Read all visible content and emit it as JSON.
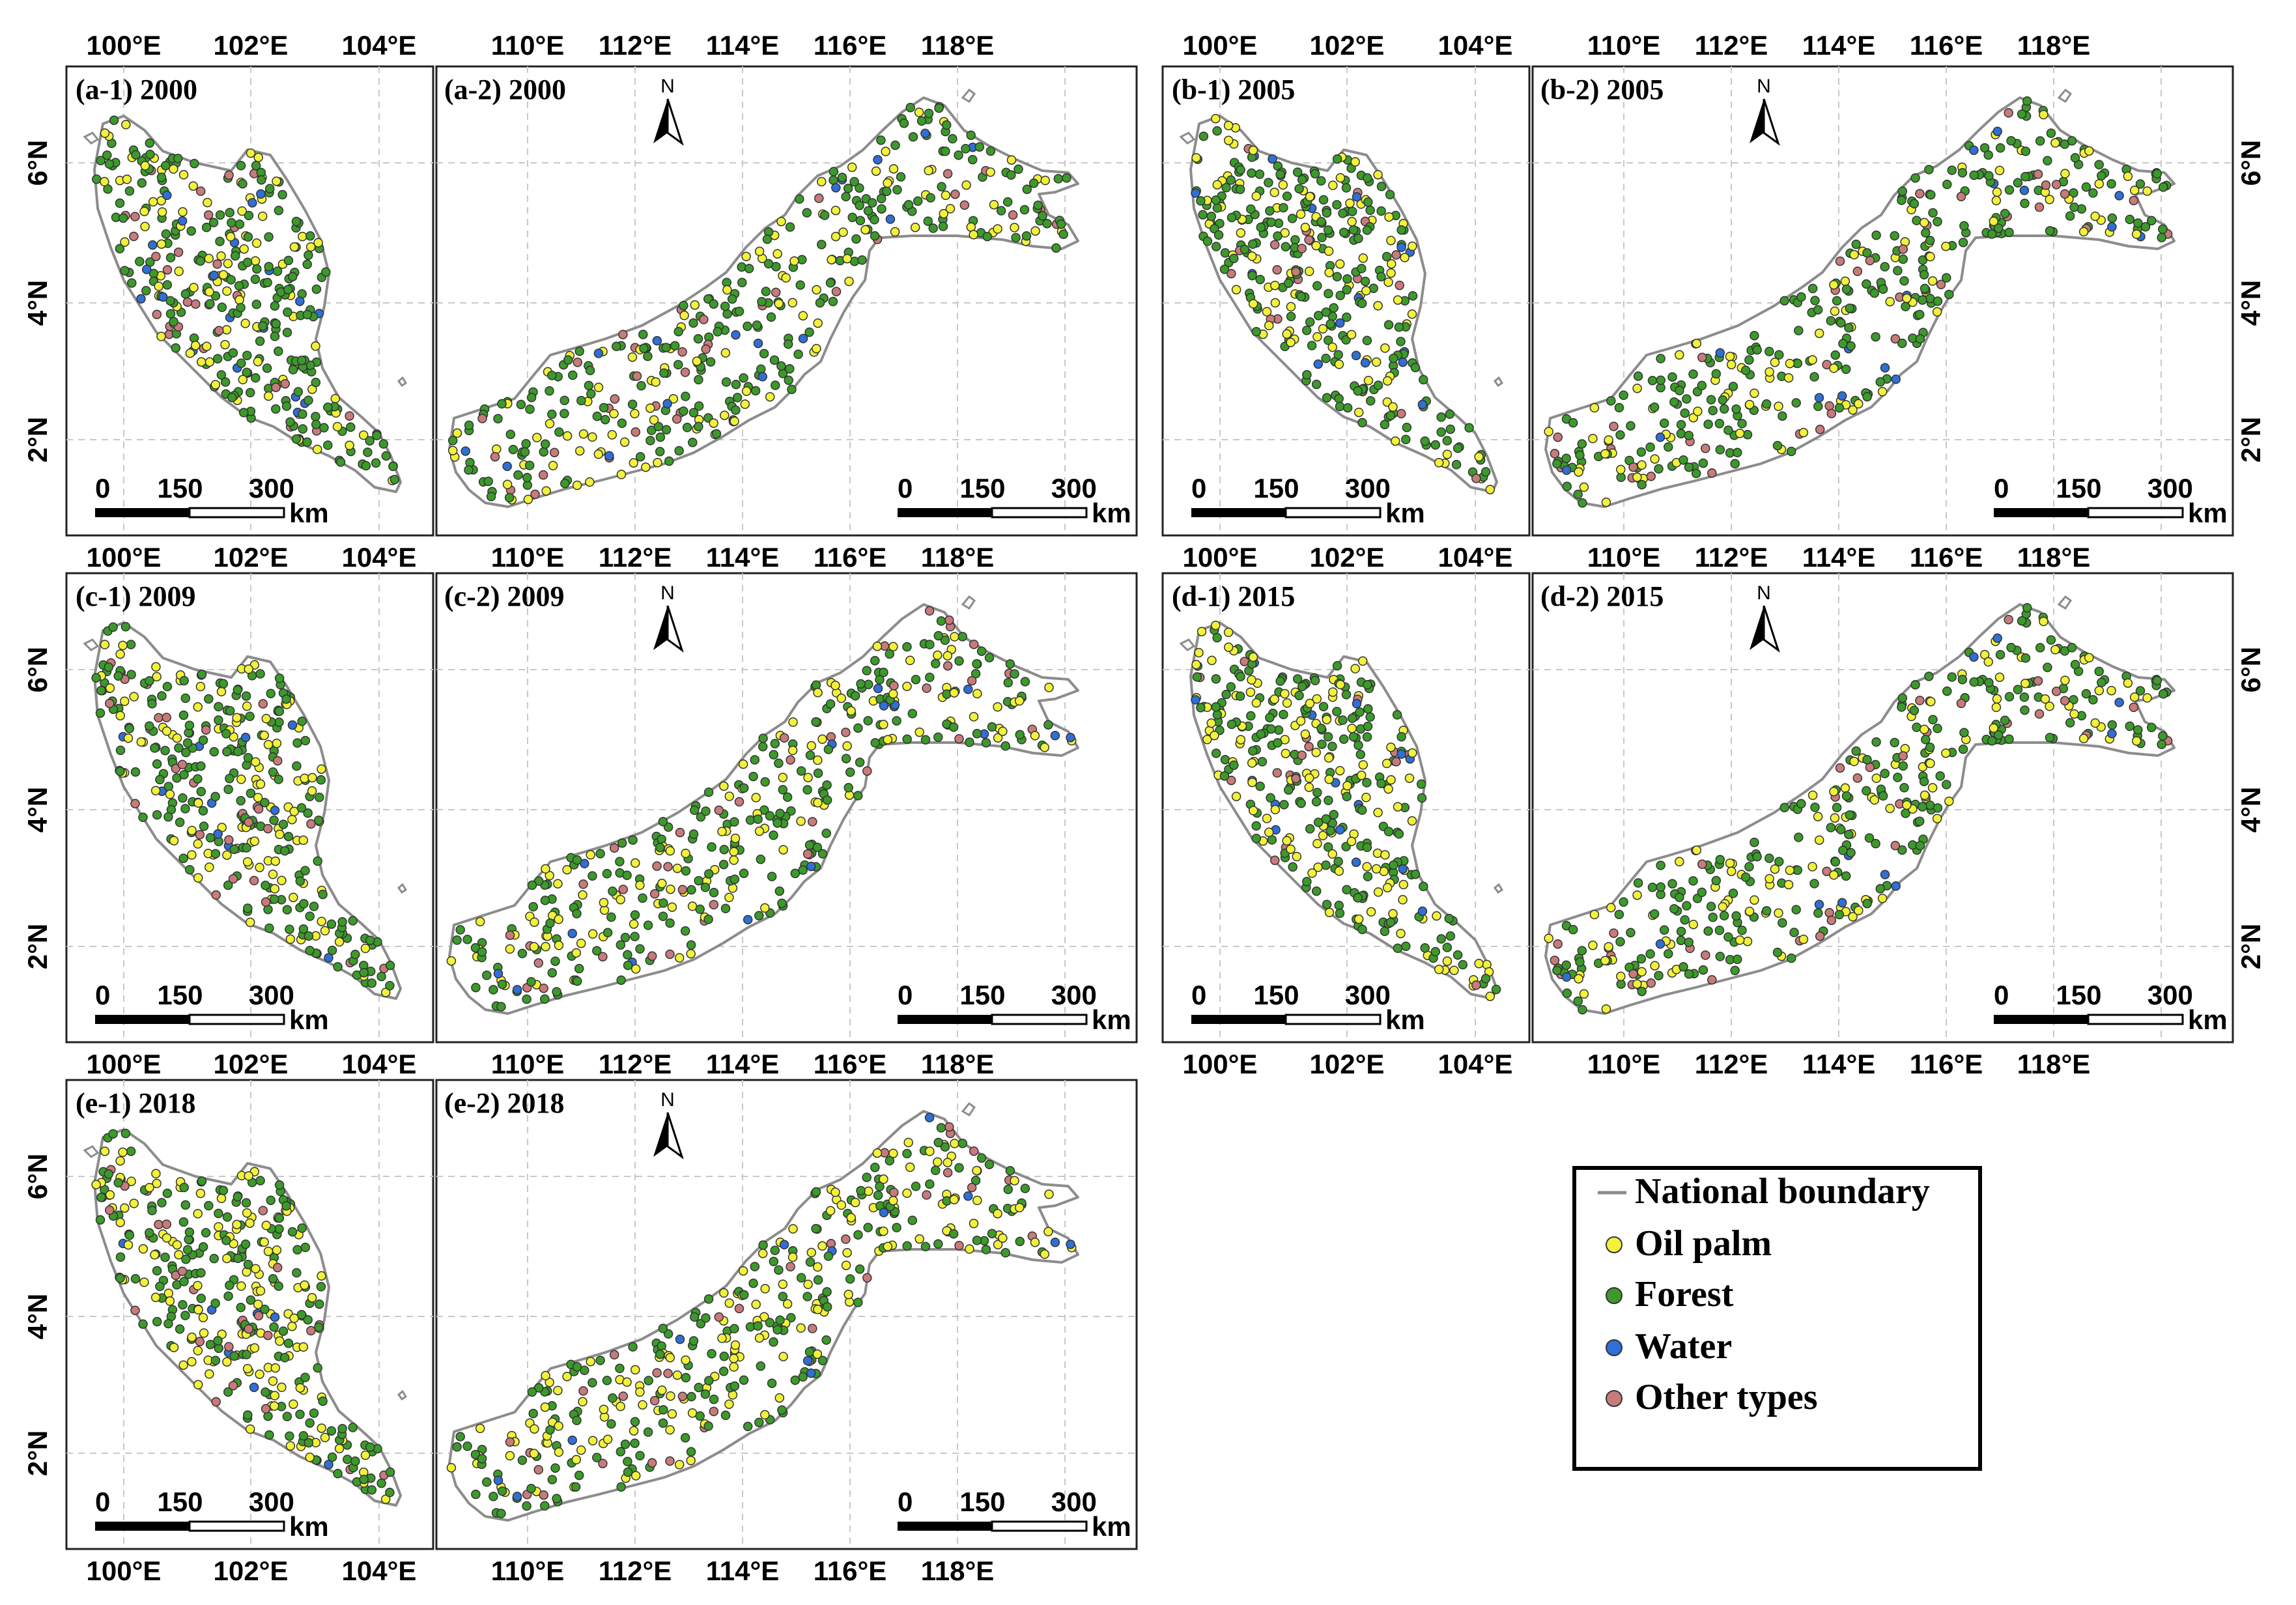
{
  "figure_title": "",
  "colors": {
    "oil_palm": "#f2f23a",
    "forest": "#3c9a2a",
    "water": "#2f6fd6",
    "other": "#c97a7a",
    "boundary": "#8c8c8c"
  },
  "panels": [
    {
      "id": "a",
      "row": 0,
      "col": 0,
      "year": "2000",
      "label_west": "(a-1) 2000",
      "label_east": "(a-2) 2000"
    },
    {
      "id": "b",
      "row": 0,
      "col": 1,
      "year": "2005",
      "label_west": "(b-1) 2005",
      "label_east": "(b-2) 2005"
    },
    {
      "id": "c",
      "row": 1,
      "col": 0,
      "year": "2009",
      "label_west": "(c-1) 2009",
      "label_east": "(c-2) 2009"
    },
    {
      "id": "d",
      "row": 1,
      "col": 1,
      "year": "2015",
      "label_west": "(d-1) 2015",
      "label_east": "(d-2) 2015"
    },
    {
      "id": "e",
      "row": 2,
      "col": 0,
      "year": "2018",
      "label_west": "(e-1) 2018",
      "label_east": "(e-2) 2018"
    }
  ],
  "axes": {
    "west_lon_ticks": [
      "100°E",
      "102°E",
      "104°E"
    ],
    "east_lon_ticks": [
      "110°E",
      "112°E",
      "114°E",
      "116°E",
      "118°E"
    ],
    "lat_ticks": [
      "6°N",
      "4°N",
      "2°N"
    ]
  },
  "scale_bar": {
    "labels": [
      "0",
      "150",
      "300"
    ],
    "unit": "km"
  },
  "north_arrow_label": "N",
  "legend": {
    "items": [
      {
        "key": "boundary",
        "label": "National boundary"
      },
      {
        "key": "oil_palm",
        "label": "Oil palm"
      },
      {
        "key": "forest",
        "label": "Forest"
      },
      {
        "key": "water",
        "label": "Water"
      },
      {
        "key": "other",
        "label": "Other types"
      }
    ]
  },
  "class_shares": {
    "2000": {
      "oil_palm": 0.24,
      "forest": 0.63,
      "water": 0.04,
      "other": 0.09
    },
    "2005": {
      "oil_palm": 0.28,
      "forest": 0.6,
      "water": 0.04,
      "other": 0.08
    },
    "2009": {
      "oil_palm": 0.3,
      "forest": 0.58,
      "water": 0.04,
      "other": 0.08
    },
    "2015": {
      "oil_palm": 0.33,
      "forest": 0.56,
      "water": 0.03,
      "other": 0.08
    },
    "2018": {
      "oil_palm": 0.38,
      "forest": 0.52,
      "water": 0.03,
      "other": 0.07
    }
  }
}
